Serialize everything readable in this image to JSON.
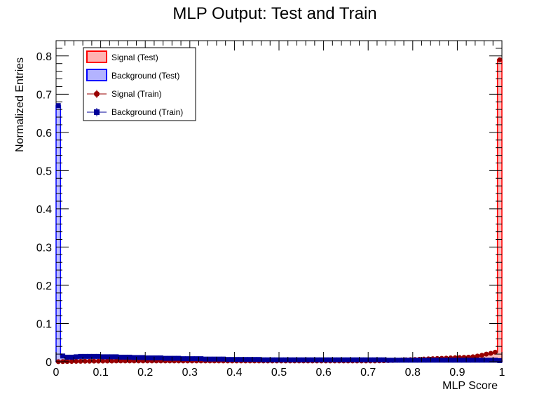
{
  "chart_data": {
    "type": "histogram",
    "title": "MLP Output: Test and Train",
    "xlabel": "MLP Score",
    "ylabel": "Normalized Entries",
    "xlim": [
      0,
      1
    ],
    "ylim": [
      0,
      0.84
    ],
    "xticks": [
      "0",
      "0.1",
      "0.2",
      "0.3",
      "0.4",
      "0.5",
      "0.6",
      "0.7",
      "0.8",
      "0.9",
      "1"
    ],
    "xtick_values": [
      0,
      0.1,
      0.2,
      0.3,
      0.4,
      0.5,
      0.6,
      0.7,
      0.8,
      0.9,
      1.0
    ],
    "yticks": [
      "0",
      "0.1",
      "0.2",
      "0.3",
      "0.4",
      "0.5",
      "0.6",
      "0.7",
      "0.8"
    ],
    "ytick_values": [
      0,
      0.1,
      0.2,
      0.3,
      0.4,
      0.5,
      0.6,
      0.7,
      0.8
    ],
    "nbins": 100,
    "legend_position": "top-left",
    "series": [
      {
        "name": "Signal (Test)",
        "style": "filled-histogram",
        "line_color": "#ff0000",
        "fill_color": "#ffb3b3",
        "values": [
          0.0002,
          0.0004,
          0.0006,
          0.0008,
          0.001,
          0.0012,
          0.0013,
          0.0014,
          0.0015,
          0.0016,
          0.0017,
          0.0018,
          0.0019,
          0.002,
          0.002,
          0.002,
          0.002,
          0.002,
          0.002,
          0.002,
          0.002,
          0.002,
          0.002,
          0.002,
          0.002,
          0.002,
          0.002,
          0.002,
          0.002,
          0.002,
          0.002,
          0.002,
          0.002,
          0.002,
          0.002,
          0.002,
          0.002,
          0.002,
          0.002,
          0.002,
          0.002,
          0.002,
          0.002,
          0.002,
          0.002,
          0.002,
          0.002,
          0.002,
          0.002,
          0.002,
          0.002,
          0.002,
          0.002,
          0.002,
          0.002,
          0.002,
          0.002,
          0.002,
          0.002,
          0.002,
          0.002,
          0.002,
          0.002,
          0.002,
          0.002,
          0.002,
          0.002,
          0.002,
          0.002,
          0.002,
          0.002,
          0.002,
          0.0022,
          0.0025,
          0.003,
          0.0035,
          0.004,
          0.0045,
          0.005,
          0.0055,
          0.006,
          0.0065,
          0.007,
          0.0075,
          0.008,
          0.0085,
          0.009,
          0.0095,
          0.01,
          0.0105,
          0.011,
          0.0115,
          0.012,
          0.013,
          0.015,
          0.017,
          0.02,
          0.022,
          0.025,
          0.79
        ]
      },
      {
        "name": "Background (Test)",
        "style": "filled-histogram",
        "line_color": "#0000ff",
        "fill_color": "#b3b3ff",
        "values": [
          0.67,
          0.015,
          0.012,
          0.012,
          0.013,
          0.014,
          0.014,
          0.014,
          0.014,
          0.014,
          0.013,
          0.013,
          0.013,
          0.013,
          0.012,
          0.012,
          0.012,
          0.011,
          0.011,
          0.011,
          0.01,
          0.01,
          0.01,
          0.01,
          0.009,
          0.009,
          0.009,
          0.009,
          0.008,
          0.008,
          0.008,
          0.008,
          0.008,
          0.007,
          0.007,
          0.007,
          0.007,
          0.007,
          0.006,
          0.006,
          0.006,
          0.006,
          0.006,
          0.006,
          0.006,
          0.006,
          0.005,
          0.005,
          0.005,
          0.005,
          0.005,
          0.005,
          0.005,
          0.005,
          0.005,
          0.005,
          0.005,
          0.005,
          0.005,
          0.005,
          0.005,
          0.005,
          0.005,
          0.005,
          0.005,
          0.005,
          0.005,
          0.005,
          0.005,
          0.005,
          0.005,
          0.005,
          0.005,
          0.005,
          0.004,
          0.004,
          0.004,
          0.004,
          0.004,
          0.004,
          0.004,
          0.004,
          0.004,
          0.004,
          0.004,
          0.004,
          0.004,
          0.004,
          0.004,
          0.004,
          0.004,
          0.004,
          0.004,
          0.004,
          0.004,
          0.004,
          0.004,
          0.004,
          0.004,
          0.003
        ]
      },
      {
        "name": "Signal (Train)",
        "style": "markers-circle",
        "color": "#990000",
        "values": [
          0.0002,
          0.0004,
          0.0006,
          0.0008,
          0.001,
          0.0012,
          0.0013,
          0.0014,
          0.0015,
          0.0016,
          0.0017,
          0.0018,
          0.0019,
          0.002,
          0.002,
          0.002,
          0.002,
          0.002,
          0.002,
          0.002,
          0.002,
          0.002,
          0.002,
          0.002,
          0.002,
          0.002,
          0.002,
          0.002,
          0.002,
          0.002,
          0.002,
          0.002,
          0.002,
          0.002,
          0.002,
          0.002,
          0.002,
          0.002,
          0.002,
          0.002,
          0.002,
          0.002,
          0.002,
          0.002,
          0.002,
          0.002,
          0.002,
          0.002,
          0.002,
          0.002,
          0.002,
          0.002,
          0.002,
          0.002,
          0.002,
          0.002,
          0.002,
          0.002,
          0.002,
          0.002,
          0.002,
          0.002,
          0.002,
          0.002,
          0.002,
          0.002,
          0.002,
          0.002,
          0.002,
          0.002,
          0.002,
          0.002,
          0.0022,
          0.0025,
          0.003,
          0.0035,
          0.004,
          0.0045,
          0.005,
          0.0055,
          0.006,
          0.0065,
          0.007,
          0.0075,
          0.008,
          0.0085,
          0.009,
          0.0095,
          0.01,
          0.0105,
          0.011,
          0.0115,
          0.012,
          0.013,
          0.015,
          0.017,
          0.02,
          0.022,
          0.025,
          0.79
        ]
      },
      {
        "name": "Background (Train)",
        "style": "markers-square",
        "color": "#000099",
        "values": [
          0.67,
          0.015,
          0.012,
          0.012,
          0.013,
          0.014,
          0.014,
          0.014,
          0.014,
          0.014,
          0.013,
          0.013,
          0.013,
          0.013,
          0.012,
          0.012,
          0.012,
          0.011,
          0.011,
          0.011,
          0.01,
          0.01,
          0.01,
          0.01,
          0.009,
          0.009,
          0.009,
          0.009,
          0.008,
          0.008,
          0.008,
          0.008,
          0.008,
          0.007,
          0.007,
          0.007,
          0.007,
          0.007,
          0.006,
          0.006,
          0.006,
          0.006,
          0.006,
          0.006,
          0.006,
          0.006,
          0.005,
          0.005,
          0.005,
          0.005,
          0.005,
          0.005,
          0.005,
          0.005,
          0.005,
          0.005,
          0.005,
          0.005,
          0.005,
          0.005,
          0.005,
          0.005,
          0.005,
          0.005,
          0.005,
          0.005,
          0.005,
          0.005,
          0.005,
          0.005,
          0.005,
          0.005,
          0.005,
          0.005,
          0.004,
          0.004,
          0.004,
          0.004,
          0.004,
          0.004,
          0.004,
          0.004,
          0.004,
          0.004,
          0.004,
          0.004,
          0.004,
          0.004,
          0.004,
          0.004,
          0.004,
          0.004,
          0.004,
          0.004,
          0.004,
          0.004,
          0.004,
          0.004,
          0.004,
          0.003
        ]
      }
    ]
  }
}
